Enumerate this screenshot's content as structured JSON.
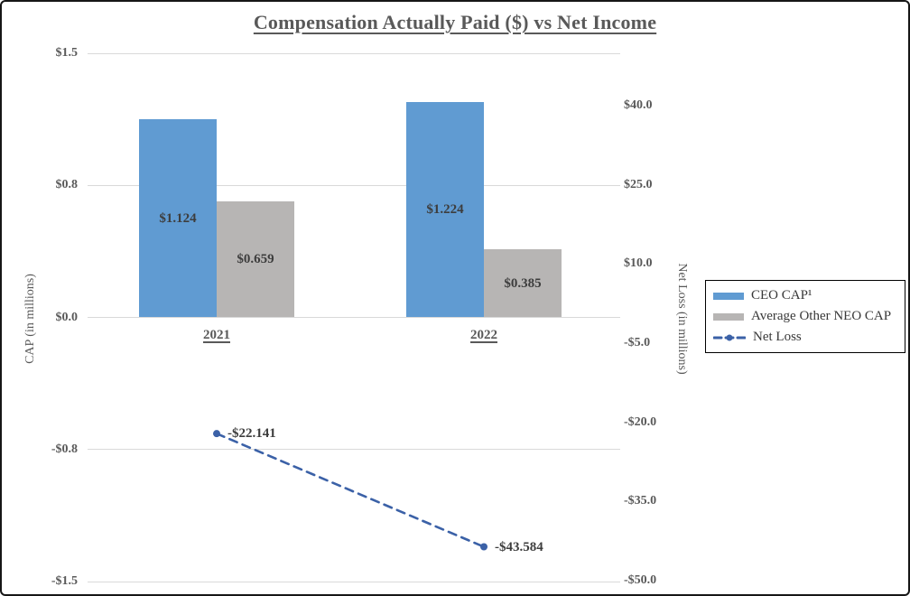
{
  "chart_data": {
    "type": "combo-bar-line",
    "title": "Compensation Actually Paid ($) vs Net Income",
    "categories": [
      "2021",
      "2022"
    ],
    "bar_series": [
      {
        "name": "CEO CAP¹",
        "values": [
          1.124,
          1.224
        ],
        "labels": [
          "$1.124",
          "$1.224"
        ],
        "color": "#609bd2"
      },
      {
        "name": "Average Other NEO CAP",
        "values": [
          0.659,
          0.385
        ],
        "labels": [
          "$0.659",
          "$0.385"
        ],
        "color": "#b7b5b4"
      }
    ],
    "line_series": {
      "name": "Net Loss",
      "axis": "right",
      "style": "dashed-with-round-markers",
      "values": [
        -22.141,
        -43.584
      ],
      "labels": [
        "-$22.141",
        "-$43.584"
      ],
      "color": "#3b61a7"
    },
    "left_axis": {
      "title": "CAP (in millions)",
      "min": -1.5,
      "max": 1.5,
      "ticks": [
        {
          "value": 1.5,
          "label": "$1.5"
        },
        {
          "value": 0.75,
          "label": "$0.8"
        },
        {
          "value": 0,
          "label": "$0.0"
        },
        {
          "value": -0.75,
          "label": "-$0.8"
        },
        {
          "value": -1.5,
          "label": "-$1.5"
        }
      ]
    },
    "right_axis": {
      "title": "Net Loss (in millions)",
      "min": -50,
      "max": 40,
      "tick_step": 15,
      "ticks": [
        {
          "value": 40,
          "label": "$40.0"
        },
        {
          "value": 25,
          "label": "$25.0"
        },
        {
          "value": 10,
          "label": "$10.0"
        },
        {
          "value": -5,
          "label": "-$5.0"
        },
        {
          "value": -20,
          "label": "-$20.0"
        },
        {
          "value": -35,
          "label": "-$35.0"
        },
        {
          "value": -50,
          "label": "-$50.0"
        }
      ]
    },
    "legend": {
      "position": "right",
      "items": [
        {
          "label": "CEO CAP¹",
          "swatch": "bar",
          "color": "#609bd2"
        },
        {
          "label": "Average Other NEO CAP",
          "swatch": "bar",
          "color": "#b7b5b4"
        },
        {
          "label": "Net Loss",
          "swatch": "dashed-line-marker",
          "color": "#3b61a7"
        }
      ]
    },
    "grid": "horizontal",
    "colors": {
      "axis_text": "#595959",
      "data_label": "#3d3d3d",
      "gridline": "#d9d9d9",
      "frame_border": "#161616",
      "background": "#ffffff"
    }
  }
}
